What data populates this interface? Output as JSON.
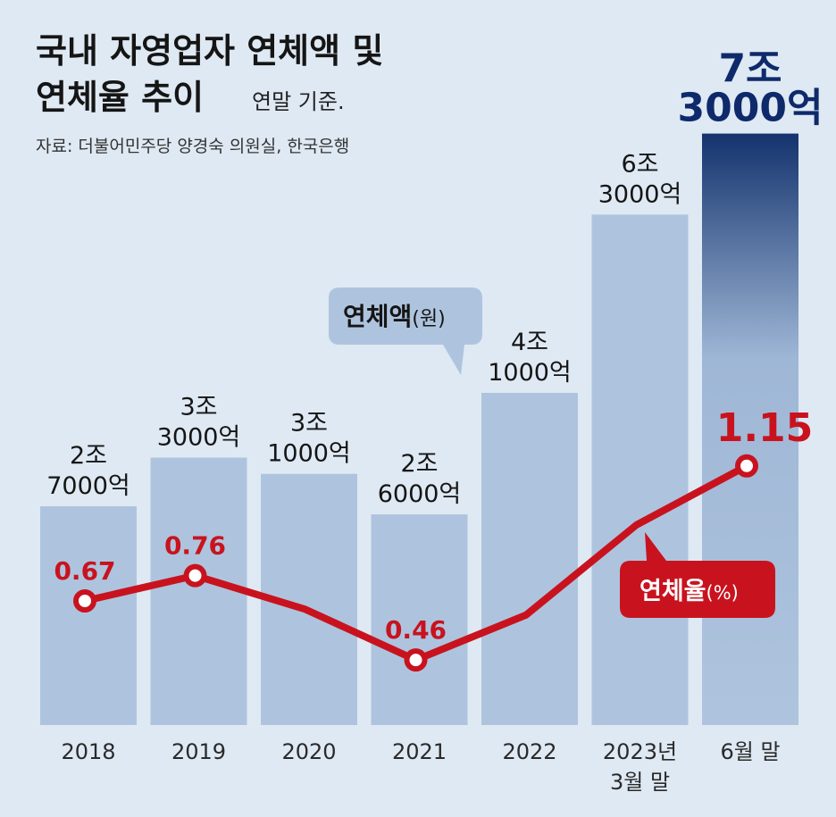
{
  "header": {
    "title_line1": "국내 자영업자 연체액 및",
    "title_line2": "연체율 추이",
    "unit_note": "연말 기준.",
    "source": "자료: 더불어민주당 양경숙 의원실, 한국은행"
  },
  "legend": {
    "amount_main": "연체액",
    "amount_unit": "(원)",
    "rate_main": "연체율",
    "rate_unit": "(%)"
  },
  "chart_data": {
    "type": "bar",
    "categories": [
      [
        "2018"
      ],
      [
        "2019"
      ],
      [
        "2020"
      ],
      [
        "2021"
      ],
      [
        "2022"
      ],
      [
        "2023년",
        "3월 말"
      ],
      [
        "6월 말"
      ]
    ],
    "series": [
      {
        "name": "연체액(원)",
        "values_억원": [
          27000,
          33000,
          31000,
          26000,
          41000,
          63000,
          73000
        ],
        "labels": [
          [
            "2조",
            "7000억"
          ],
          [
            "3조",
            "3000억"
          ],
          [
            "3조",
            "1000억"
          ],
          [
            "2조",
            "6000억"
          ],
          [
            "4조",
            "1000억"
          ],
          [
            "6조",
            "3000억"
          ],
          [
            "7조",
            "3000억"
          ]
        ]
      },
      {
        "name": "연체율(%)",
        "type": "line",
        "values": [
          0.67,
          0.76,
          0.64,
          0.46,
          0.62,
          0.94,
          1.15
        ],
        "labels": [
          "0.67",
          "0.76",
          "",
          "0.46",
          "",
          "",
          "1.15"
        ],
        "markers": [
          true,
          true,
          false,
          true,
          false,
          false,
          true
        ]
      }
    ],
    "colors": {
      "bar": "#aec4de",
      "last_bar_top": "#14336e",
      "rate_line": "#c8131e",
      "highlight_amount": "#0e2a6b"
    },
    "grid": false
  }
}
